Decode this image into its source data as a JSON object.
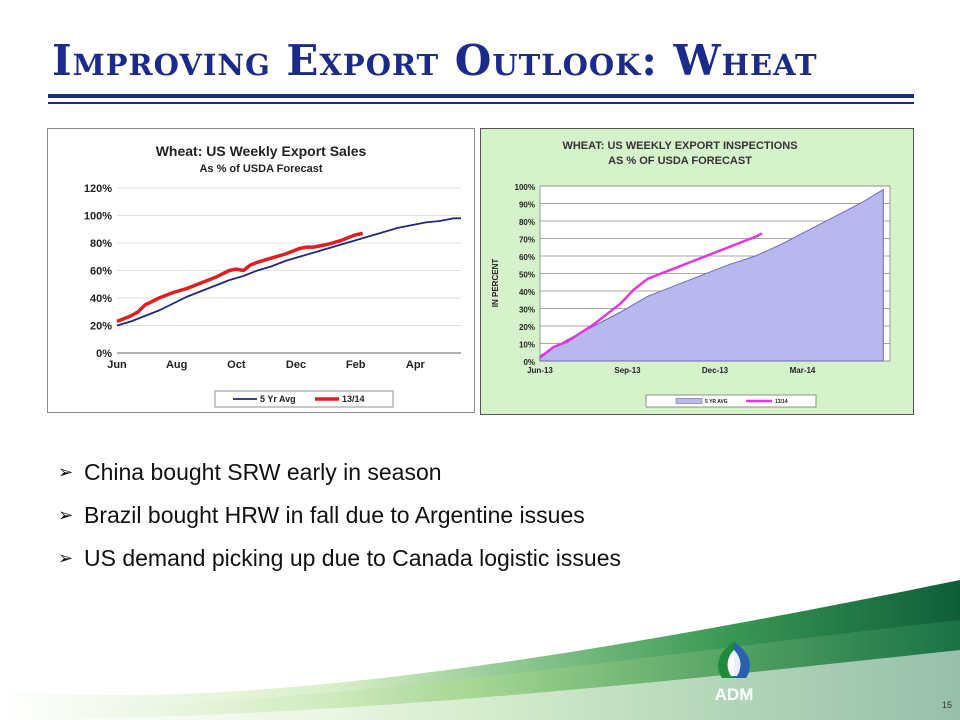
{
  "slide": {
    "title": "Improving Export Outlook: Wheat",
    "page_number": "15",
    "logo_text": "ADM",
    "bullets": [
      "China bought SRW early in season",
      "Brazil bought HRW in fall due to Argentine issues",
      "US demand picking up due to Canada logistic issues"
    ]
  },
  "chart_data": [
    {
      "type": "line",
      "title": "Wheat: US Weekly Export Sales",
      "subtitle": "As % of USDA Forecast",
      "x_tick_labels": [
        "Jun",
        "Aug",
        "Oct",
        "Dec",
        "Feb",
        "Apr"
      ],
      "x_tick_weeks": [
        0,
        8.5,
        17,
        25.5,
        34,
        42.5
      ],
      "y_tick_labels": [
        "0%",
        "20%",
        "40%",
        "60%",
        "80%",
        "100%",
        "120%"
      ],
      "y_ticks": [
        0,
        20,
        40,
        60,
        80,
        100,
        120
      ],
      "ylim": [
        0,
        120
      ],
      "grid": true,
      "legend_position": "bottom",
      "series": [
        {
          "name": "5 Yr Avg",
          "color": "#1f2a7a",
          "weeks": [
            0,
            2,
            4,
            6,
            8,
            10,
            12,
            14,
            16,
            18,
            20,
            22,
            24,
            26,
            28,
            30,
            32,
            34,
            36,
            38,
            40,
            42,
            44,
            46,
            48,
            49
          ],
          "values": [
            20,
            23,
            27,
            31,
            36,
            41,
            45,
            49,
            53,
            56,
            60,
            63,
            67,
            70,
            73,
            76,
            79,
            82,
            85,
            88,
            91,
            93,
            95,
            96,
            98,
            98
          ]
        },
        {
          "name": "13/14",
          "color": "#e02020",
          "weeks": [
            0,
            2,
            3,
            4,
            6,
            8,
            10,
            12,
            14,
            16,
            17,
            18,
            19,
            20,
            22,
            24,
            26,
            27,
            28,
            30,
            32,
            34,
            35
          ],
          "values": [
            23,
            27,
            30,
            35,
            40,
            44,
            47,
            51,
            55,
            60,
            61,
            60,
            64,
            66,
            69,
            72,
            76,
            77,
            77,
            79,
            82,
            86,
            87
          ]
        }
      ]
    },
    {
      "type": "area",
      "title": "WHEAT: US WEEKLY EXPORT INSPECTIONS",
      "subtitle": "AS % OF USDA FORECAST",
      "ylabel": "IN PERCENT",
      "x_tick_labels": [
        "Jun-13",
        "Sep-13",
        "Dec-13",
        "Mar-14"
      ],
      "x_tick_weeks": [
        0,
        13,
        26,
        39
      ],
      "y_tick_labels": [
        "0%",
        "10%",
        "20%",
        "30%",
        "40%",
        "50%",
        "60%",
        "70%",
        "80%",
        "90%",
        "100%"
      ],
      "y_ticks": [
        0,
        10,
        20,
        30,
        40,
        50,
        60,
        70,
        80,
        90,
        100
      ],
      "ylim": [
        0,
        100
      ],
      "grid": true,
      "legend_position": "bottom",
      "series": [
        {
          "name": "5 YR AVG",
          "type": "area",
          "color": "#b8b8ee",
          "weeks": [
            0,
            4,
            8,
            12,
            16,
            20,
            24,
            28,
            32,
            36,
            40,
            44,
            48,
            51
          ],
          "values": [
            3,
            12,
            20,
            28,
            37,
            43,
            49,
            55,
            60,
            67,
            75,
            83,
            91,
            98
          ]
        },
        {
          "name": "13/14",
          "type": "line",
          "color": "#e436e0",
          "weeks": [
            0,
            1,
            2,
            4,
            6,
            8,
            10,
            12,
            14,
            16,
            18,
            20,
            22,
            24,
            26,
            28,
            30,
            32,
            33
          ],
          "values": [
            2,
            5,
            8,
            11,
            16,
            21,
            27,
            33,
            41,
            47,
            50,
            53,
            56,
            59,
            62,
            65,
            68,
            71,
            73
          ]
        }
      ]
    }
  ]
}
